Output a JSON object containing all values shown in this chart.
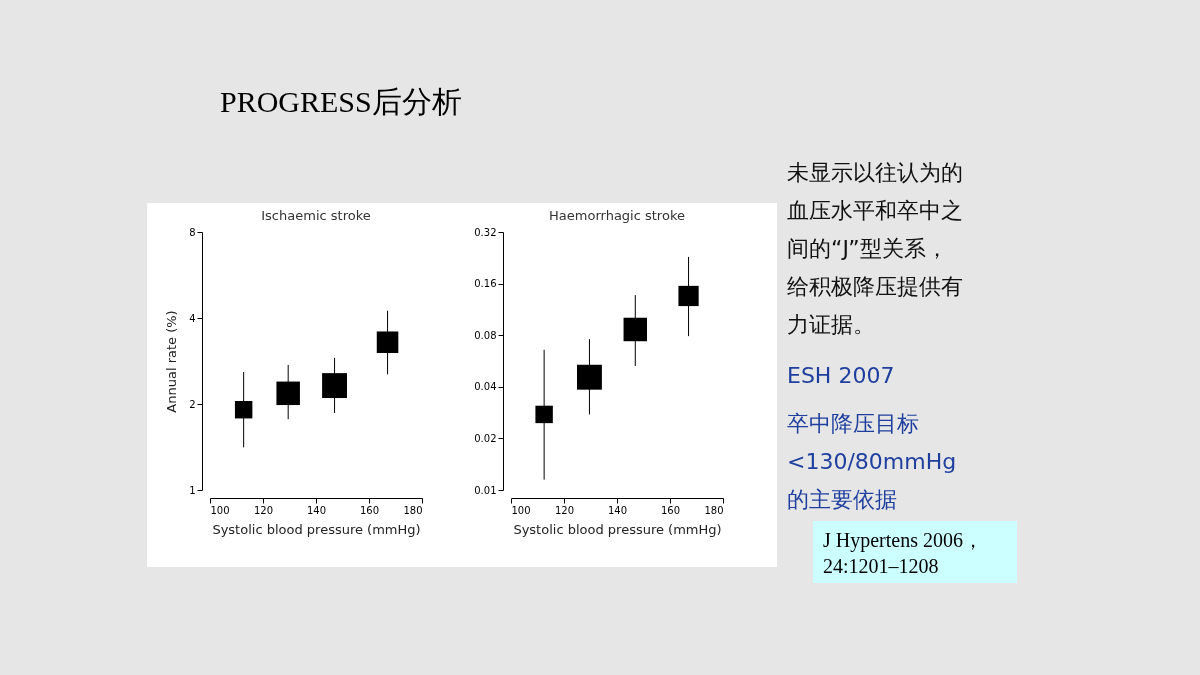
{
  "chart_data": [
    {
      "type": "other",
      "title": "PROGRESS后分析",
      "annotations": [
        "未显示以往认为的血压水平和卒中之间的“J”型关系，给积极降压提供有力证据。",
        "ESH 2007",
        "卒中降压目标<130/80mmHg的主要依据",
        "J Hypertens 2006，24:1201–1208"
      ]
    },
    {
      "type": "bubble",
      "title": "Ischaemic stroke",
      "xlabel": "Systolic blood pressure (mmHg)",
      "ylabel": "Annual rate (%)",
      "log": "y",
      "marker": "square",
      "grid": false,
      "xlim": [
        100,
        180
      ],
      "xticks": [
        100,
        120,
        140,
        160,
        180
      ],
      "ylim": [
        1,
        8
      ],
      "yticks": [
        1,
        2,
        4,
        8
      ],
      "series": [
        {
          "color": "#000000",
          "x": [
            112.7,
            129.5,
            147,
            167
          ],
          "values": [
            1.91,
            2.18,
            2.32,
            3.29
          ],
          "sizes": [
            0.49,
            0.89,
            1,
            0.75
          ],
          "errors": [
            [
              1.41,
              2.59
            ],
            [
              1.77,
              2.74
            ],
            [
              1.86,
              2.9
            ],
            [
              2.54,
              4.24
            ]
          ]
        }
      ]
    },
    {
      "type": "bubble",
      "title": "Haemorrhagic stroke",
      "xlabel": "Systolic blood pressure (mmHg)",
      "log": "y",
      "marker": "square",
      "grid": false,
      "xlim": [
        100,
        180
      ],
      "xticks": [
        100,
        120,
        140,
        160,
        180
      ],
      "ylim": [
        0.01,
        0.32
      ],
      "yticks": [
        0.01,
        0.02,
        0.04,
        0.08,
        0.16,
        0.32
      ],
      "series": [
        {
          "color": "#000000",
          "x": [
            112.5,
            129.6,
            146.9,
            167
          ],
          "values": [
            0.0276,
            0.0455,
            0.0864,
            0.1355
          ],
          "sizes": [
            0.49,
            1,
            0.89,
            0.66
          ],
          "errors": [
            [
              0.0115,
              0.0658
            ],
            [
              0.0276,
              0.0759
            ],
            [
              0.0529,
              0.137
            ],
            [
              0.079,
              0.229
            ]
          ]
        }
      ]
    }
  ]
}
